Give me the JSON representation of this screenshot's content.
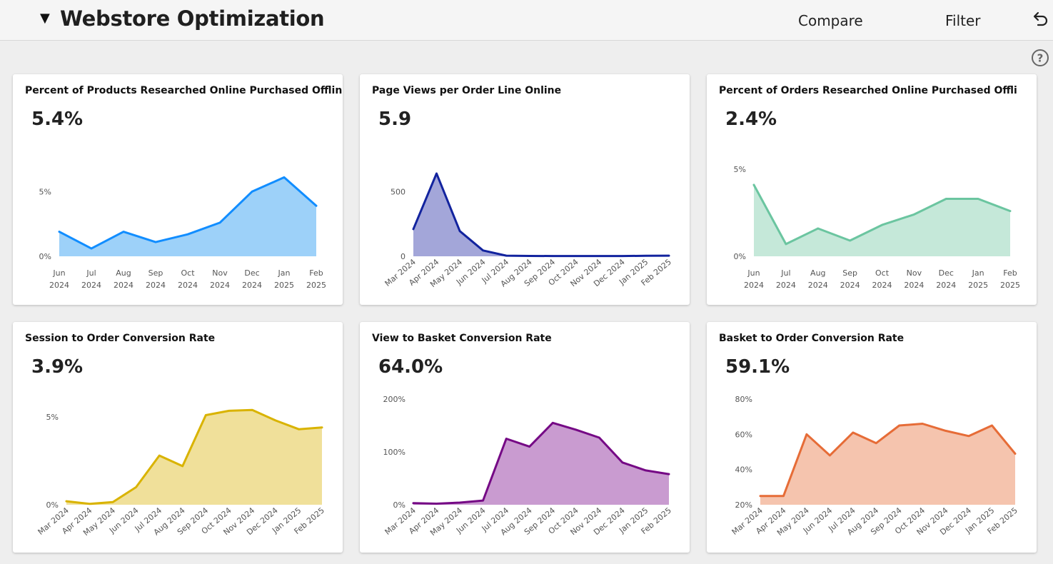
{
  "header": {
    "title": "Webstore Optimization",
    "toggle_symbol": "▼",
    "compare_label": "Compare",
    "filter_label": "Filter",
    "undo_icon": "undo-icon",
    "help_icon": "help-icon"
  },
  "cards": [
    {
      "title": "Percent of Products Researched Online Purchased Offline",
      "value": "5.4%"
    },
    {
      "title": "Page Views per Order Line Online",
      "value": "5.9"
    },
    {
      "title": "Percent of Orders Researched Online Purchased Offli",
      "value": "2.4%"
    },
    {
      "title": "Session to Order Conversion Rate",
      "value": "3.9%"
    },
    {
      "title": "View to Basket Conversion Rate",
      "value": "64.0%"
    },
    {
      "title": "Basket to Order Conversion Rate",
      "value": "59.1%"
    }
  ],
  "chart_data": [
    {
      "type": "area",
      "x": [
        "Jun 2024",
        "Jul 2024",
        "Aug 2024",
        "Sep 2024",
        "Oct 2024",
        "Nov 2024",
        "Dec 2024",
        "Jan 2025",
        "Feb 2025"
      ],
      "values": [
        1.9,
        0.6,
        1.9,
        1.1,
        1.7,
        2.6,
        5.0,
        6.1,
        3.9
      ],
      "yticks": [
        "5%",
        "0%"
      ],
      "ytick_values": [
        5,
        0
      ],
      "ylim": [
        0,
        8
      ],
      "tick_style": "two-line",
      "color": "#118DFF",
      "fill": "#9DD1F9"
    },
    {
      "type": "area",
      "x": [
        "Mar 2024",
        "Apr 2024",
        "May 2024",
        "Jun 2024",
        "Jul 2024",
        "Aug 2024",
        "Sep 2024",
        "Oct 2024",
        "Nov 2024",
        "Dec 2024",
        "Jan 2025",
        "Feb 2025"
      ],
      "values": [
        210,
        640,
        195,
        45,
        5,
        3,
        2,
        2,
        2,
        2,
        4,
        5
      ],
      "yticks": [
        "500",
        "0"
      ],
      "ytick_values": [
        500,
        0
      ],
      "ylim": [
        0,
        800
      ],
      "tick_style": "rotated",
      "color": "#12239E",
      "fill": "#A3A6D9"
    },
    {
      "type": "area",
      "x": [
        "Jun 2024",
        "Jul 2024",
        "Aug 2024",
        "Sep 2024",
        "Oct 2024",
        "Nov 2024",
        "Dec 2024",
        "Jan 2025",
        "Feb 2025"
      ],
      "values": [
        4.1,
        0.7,
        1.6,
        0.9,
        1.8,
        2.4,
        3.3,
        3.3,
        2.6
      ],
      "yticks": [
        "5%",
        "0%"
      ],
      "ytick_values": [
        5,
        0
      ],
      "ylim": [
        0,
        5
      ],
      "tick_style": "two-line",
      "color": "#6BC5A0",
      "fill": "#C5E8D9"
    },
    {
      "type": "area",
      "x": [
        "Mar 2024",
        "Apr 2024",
        "May 2024",
        "Jun 2024",
        "Jul 2024",
        "Aug 2024",
        "Sep 2024",
        "Oct 2024",
        "Nov 2024",
        "Dec 2024",
        "Jan 2025",
        "Feb 2025"
      ],
      "values": [
        0.2,
        0.05,
        0.15,
        1.0,
        2.8,
        2.2,
        5.1,
        5.35,
        5.4,
        4.8,
        4.3,
        4.4
      ],
      "yticks": [
        "5%",
        "0%"
      ],
      "ytick_values": [
        5,
        0
      ],
      "ylim": [
        0,
        5
      ],
      "tick_style": "rotated",
      "color": "#D9B300",
      "fill": "#F0E09A"
    },
    {
      "type": "area",
      "x": [
        "Mar 2024",
        "Apr 2024",
        "May 2024",
        "Jun 2024",
        "Jul 2024",
        "Aug 2024",
        "Sep 2024",
        "Oct 2024",
        "Nov 2024",
        "Dec 2024",
        "Jan 2025",
        "Feb 2025"
      ],
      "values": [
        3,
        2,
        4,
        8,
        125,
        110,
        155,
        142,
        127,
        80,
        65,
        58
      ],
      "yticks": [
        "200%",
        "100%",
        "0%"
      ],
      "ytick_values": [
        200,
        100,
        0
      ],
      "ylim": [
        0,
        200
      ],
      "tick_style": "rotated",
      "color": "#750985",
      "fill": "#C99BD0"
    },
    {
      "type": "area",
      "x": [
        "Mar 2024",
        "Apr 2024",
        "May 2024",
        "Jun 2024",
        "Jul 2024",
        "Aug 2024",
        "Sep 2024",
        "Oct 2024",
        "Nov 2024",
        "Dec 2024",
        "Jan 2025",
        "Feb 2025"
      ],
      "values": [
        25,
        25,
        60,
        48,
        61,
        55,
        65,
        66,
        62,
        59,
        65,
        49
      ],
      "yticks": [
        "80%",
        "60%",
        "40%",
        "20%"
      ],
      "ytick_values": [
        80,
        60,
        40,
        20
      ],
      "ylim": [
        20,
        80
      ],
      "tick_style": "rotated",
      "color": "#E66C37",
      "fill": "#F5C4AE"
    }
  ]
}
